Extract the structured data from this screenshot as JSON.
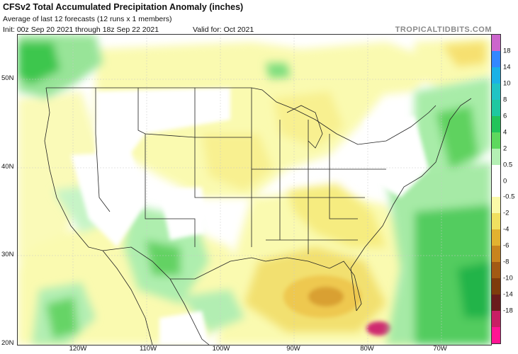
{
  "header": {
    "title": "CFSv2 Total Accumulated Precipitation Anomaly (inches)",
    "subtitle": "Average of last 12 forecasts (12 runs x 1 members)",
    "init": "Init: 00z Sep 20 2021 through 18z Sep 22 2021",
    "valid": "Valid for: Oct 2021",
    "brand": "TROPICALTIDBITS.COM"
  },
  "map": {
    "lat_labels": [
      "50N",
      "40N",
      "30N",
      "20N"
    ],
    "lon_labels": [
      "120W",
      "110W",
      "100W",
      "90W",
      "80W",
      "70W"
    ]
  },
  "colorbar": {
    "labels": [
      "18",
      "14",
      "10",
      "8",
      "6",
      "4",
      "2",
      "0.5",
      "0",
      "-0.5",
      "-2",
      "-4",
      "-6",
      "-8",
      "-10",
      "-14",
      "-18"
    ],
    "colors": [
      "#cc66cc",
      "#3388ff",
      "#1ab2e6",
      "#20c4c4",
      "#1ec8a0",
      "#22c45a",
      "#5ed85e",
      "#b4f0b4",
      "#ffffff",
      "#ffffff",
      "#fafaa8",
      "#f0e060",
      "#e2b230",
      "#c8841e",
      "#a25a14",
      "#7e3c0c",
      "#6a1c1c",
      "#c81e64",
      "#ff1493"
    ]
  }
}
